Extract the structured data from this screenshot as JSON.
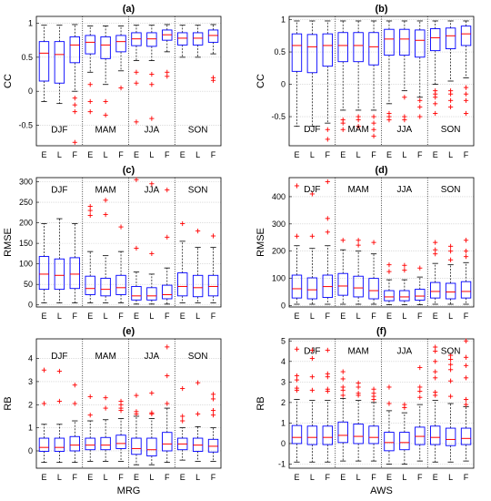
{
  "chart_data": [
    {
      "type": "box",
      "title": "(a)",
      "ylabel": "CC",
      "xlabel": "",
      "ylim": [
        -0.8,
        1.1
      ],
      "yticks": [
        -0.5,
        0,
        0.5,
        1
      ],
      "season_label_y": -0.55,
      "seasons": [
        "DJF",
        "MAM",
        "JJA",
        "SON"
      ],
      "categories": [
        "E",
        "L",
        "F"
      ],
      "boxes": [
        {
          "q1": 0.15,
          "med": 0.56,
          "q3": 0.73,
          "lo": -0.15,
          "hi": 0.97,
          "out": []
        },
        {
          "q1": 0.12,
          "med": 0.54,
          "q3": 0.73,
          "lo": -0.18,
          "hi": 0.97,
          "out": []
        },
        {
          "q1": 0.42,
          "med": 0.68,
          "q3": 0.8,
          "lo": 0.0,
          "hi": 0.98,
          "out": [
            -0.1,
            -0.2,
            -0.3,
            -0.75
          ]
        },
        {
          "q1": 0.55,
          "med": 0.72,
          "q3": 0.82,
          "lo": 0.28,
          "hi": 0.96,
          "out": [
            0.1,
            -0.15,
            -0.3
          ]
        },
        {
          "q1": 0.48,
          "med": 0.68,
          "q3": 0.8,
          "lo": 0.1,
          "hi": 0.96,
          "out": [
            -0.15,
            -0.35
          ]
        },
        {
          "q1": 0.58,
          "med": 0.73,
          "q3": 0.82,
          "lo": 0.3,
          "hi": 0.96,
          "out": [
            0.05
          ]
        },
        {
          "q1": 0.67,
          "med": 0.77,
          "q3": 0.86,
          "lo": 0.45,
          "hi": 0.97,
          "out": [
            0.28,
            0.12,
            -0.45
          ]
        },
        {
          "q1": 0.66,
          "med": 0.77,
          "q3": 0.86,
          "lo": 0.45,
          "hi": 0.97,
          "out": [
            0.25,
            0.1,
            -0.4
          ]
        },
        {
          "q1": 0.75,
          "med": 0.83,
          "q3": 0.9,
          "lo": 0.58,
          "hi": 0.98,
          "out": [
            0.28,
            0.22
          ]
        },
        {
          "q1": 0.68,
          "med": 0.78,
          "q3": 0.86,
          "lo": 0.5,
          "hi": 0.97,
          "out": []
        },
        {
          "q1": 0.68,
          "med": 0.78,
          "q3": 0.86,
          "lo": 0.5,
          "hi": 0.97,
          "out": []
        },
        {
          "q1": 0.72,
          "med": 0.82,
          "q3": 0.9,
          "lo": 0.55,
          "hi": 0.98,
          "out": [
            0.2,
            0.16
          ]
        }
      ]
    },
    {
      "type": "box",
      "title": "(b)",
      "ylabel": "CC",
      "xlabel": "",
      "ylim": [
        -0.95,
        1.05
      ],
      "yticks": [
        -0.5,
        0,
        0.5,
        1
      ],
      "season_label_y": -0.68,
      "seasons": [
        "DJF",
        "MAM",
        "JJA",
        "SON"
      ],
      "categories": [
        "E",
        "L",
        "F"
      ],
      "boxes": [
        {
          "q1": 0.2,
          "med": 0.6,
          "q3": 0.78,
          "lo": -0.65,
          "hi": 0.98,
          "out": []
        },
        {
          "q1": 0.18,
          "med": 0.58,
          "q3": 0.77,
          "lo": -0.65,
          "hi": 0.98,
          "out": []
        },
        {
          "q1": 0.28,
          "med": 0.6,
          "q3": 0.78,
          "lo": -0.6,
          "hi": 0.98,
          "out": [
            -0.7,
            -0.85
          ]
        },
        {
          "q1": 0.35,
          "med": 0.6,
          "q3": 0.8,
          "lo": -0.4,
          "hi": 0.98,
          "out": [
            -0.55,
            -0.6,
            -0.7
          ]
        },
        {
          "q1": 0.35,
          "med": 0.6,
          "q3": 0.8,
          "lo": -0.4,
          "hi": 0.98,
          "out": [
            -0.5,
            -0.55,
            -0.65
          ]
        },
        {
          "q1": 0.3,
          "med": 0.58,
          "q3": 0.8,
          "lo": -0.4,
          "hi": 0.98,
          "out": [
            -0.5,
            -0.6,
            -0.7,
            -0.8
          ]
        },
        {
          "q1": 0.45,
          "med": 0.7,
          "q3": 0.85,
          "lo": -0.3,
          "hi": 0.98,
          "out": [
            -0.45,
            -0.5,
            -0.55
          ]
        },
        {
          "q1": 0.45,
          "med": 0.7,
          "q3": 0.85,
          "lo": -0.1,
          "hi": 0.98,
          "out": [
            -0.2,
            -0.5,
            -0.55
          ]
        },
        {
          "q1": 0.42,
          "med": 0.68,
          "q3": 0.84,
          "lo": -0.2,
          "hi": 0.98,
          "out": [
            -0.25,
            -0.35,
            -0.5
          ]
        },
        {
          "q1": 0.52,
          "med": 0.72,
          "q3": 0.86,
          "lo": 0.0,
          "hi": 0.98,
          "out": [
            -0.1,
            -0.15,
            -0.2,
            -0.3,
            -0.45
          ]
        },
        {
          "q1": 0.55,
          "med": 0.75,
          "q3": 0.87,
          "lo": 0.05,
          "hi": 0.98,
          "out": [
            -0.1,
            -0.15,
            -0.25,
            -0.35
          ]
        },
        {
          "q1": 0.6,
          "med": 0.78,
          "q3": 0.9,
          "lo": 0.1,
          "hi": 0.98,
          "out": [
            -0.05,
            -0.15,
            -0.25,
            -0.45
          ]
        }
      ]
    },
    {
      "type": "box",
      "title": "(c)",
      "ylabel": "RMSE",
      "xlabel": "",
      "ylim": [
        -5,
        310
      ],
      "yticks": [
        0,
        50,
        100,
        150,
        200,
        250,
        300
      ],
      "season_label_y": 282,
      "seasons": [
        "DJF",
        "MAM",
        "JJA",
        "SON"
      ],
      "categories": [
        "E",
        "L",
        "F"
      ],
      "boxes": [
        {
          "q1": 38,
          "med": 75,
          "q3": 118,
          "lo": 5,
          "hi": 198,
          "out": []
        },
        {
          "q1": 38,
          "med": 72,
          "q3": 112,
          "lo": 5,
          "hi": 210,
          "out": []
        },
        {
          "q1": 40,
          "med": 75,
          "q3": 115,
          "lo": 5,
          "hi": 198,
          "out": []
        },
        {
          "q1": 25,
          "med": 40,
          "q3": 70,
          "lo": 5,
          "hi": 130,
          "out": [
            240,
            230,
            218
          ]
        },
        {
          "q1": 22,
          "med": 38,
          "q3": 65,
          "lo": 5,
          "hi": 120,
          "out": [
            255,
            220
          ]
        },
        {
          "q1": 25,
          "med": 42,
          "q3": 72,
          "lo": 5,
          "hi": 130,
          "out": [
            190
          ]
        },
        {
          "q1": 12,
          "med": 22,
          "q3": 45,
          "lo": 2,
          "hi": 80,
          "out": [
            305,
            138
          ]
        },
        {
          "q1": 12,
          "med": 22,
          "q3": 42,
          "lo": 2,
          "hi": 75,
          "out": [
            295,
            125
          ]
        },
        {
          "q1": 15,
          "med": 25,
          "q3": 48,
          "lo": 2,
          "hi": 90,
          "out": [
            280,
            165
          ]
        },
        {
          "q1": 22,
          "med": 45,
          "q3": 78,
          "lo": 5,
          "hi": 155,
          "out": [
            198
          ]
        },
        {
          "q1": 20,
          "med": 42,
          "q3": 72,
          "lo": 5,
          "hi": 140,
          "out": [
            180
          ]
        },
        {
          "q1": 22,
          "med": 45,
          "q3": 72,
          "lo": 5,
          "hi": 140,
          "out": [
            168
          ]
        }
      ]
    },
    {
      "type": "box",
      "title": "(d)",
      "ylabel": "RMSE",
      "xlabel": "",
      "ylim": [
        -5,
        470
      ],
      "yticks": [
        0,
        100,
        200,
        300,
        400
      ],
      "season_label_y": 430,
      "seasons": [
        "DJF",
        "MAM",
        "JJA",
        "SON"
      ],
      "categories": [
        "E",
        "L",
        "F"
      ],
      "boxes": [
        {
          "q1": 28,
          "med": 62,
          "q3": 112,
          "lo": 5,
          "hi": 220,
          "out": [
            440,
            255
          ]
        },
        {
          "q1": 25,
          "med": 58,
          "q3": 102,
          "lo": 5,
          "hi": 210,
          "out": [
            410,
            255
          ]
        },
        {
          "q1": 30,
          "med": 70,
          "q3": 112,
          "lo": 5,
          "hi": 220,
          "out": [
            455,
            320,
            270
          ]
        },
        {
          "q1": 38,
          "med": 72,
          "q3": 118,
          "lo": 5,
          "hi": 205,
          "out": [
            240
          ]
        },
        {
          "q1": 32,
          "med": 65,
          "q3": 108,
          "lo": 5,
          "hi": 200,
          "out": [
            240,
            222
          ]
        },
        {
          "q1": 25,
          "med": 55,
          "q3": 100,
          "lo": 5,
          "hi": 190,
          "out": [
            232
          ]
        },
        {
          "q1": 18,
          "med": 32,
          "q3": 55,
          "lo": 3,
          "hi": 95,
          "out": [
            150,
            125
          ]
        },
        {
          "q1": 18,
          "med": 32,
          "q3": 55,
          "lo": 3,
          "hi": 95,
          "out": [
            148,
            130
          ]
        },
        {
          "q1": 20,
          "med": 35,
          "q3": 60,
          "lo": 3,
          "hi": 105,
          "out": [
            138
          ]
        },
        {
          "q1": 28,
          "med": 52,
          "q3": 85,
          "lo": 5,
          "hi": 155,
          "out": [
            232,
            205,
            190
          ]
        },
        {
          "q1": 25,
          "med": 50,
          "q3": 82,
          "lo": 5,
          "hi": 150,
          "out": [
            218,
            200,
            168
          ]
        },
        {
          "q1": 28,
          "med": 52,
          "q3": 88,
          "lo": 5,
          "hi": 158,
          "out": [
            240,
            200,
            180
          ]
        }
      ]
    },
    {
      "type": "box",
      "title": "(e)",
      "ylabel": "RB",
      "xlabel": "MRG",
      "ylim": [
        -0.75,
        4.85
      ],
      "yticks": [
        0,
        1,
        2,
        3,
        4
      ],
      "season_label_y": 4.15,
      "seasons": [
        "DJF",
        "MAM",
        "JJA",
        "SON"
      ],
      "categories": [
        "E",
        "L",
        "F"
      ],
      "boxes": [
        {
          "q1": -0.02,
          "med": 0.15,
          "q3": 0.55,
          "lo": -0.5,
          "hi": 1.15,
          "out": [
            3.5,
            2.05
          ]
        },
        {
          "q1": -0.02,
          "med": 0.15,
          "q3": 0.55,
          "lo": -0.5,
          "hi": 1.15,
          "out": [
            3.45,
            2.15
          ]
        },
        {
          "q1": 0.0,
          "med": 0.25,
          "q3": 0.62,
          "lo": -0.5,
          "hi": 1.3,
          "out": [
            2.85,
            2.05
          ]
        },
        {
          "q1": 0.05,
          "med": 0.25,
          "q3": 0.55,
          "lo": -0.45,
          "hi": 1.3,
          "out": [
            2.35,
            1.55
          ]
        },
        {
          "q1": 0.05,
          "med": 0.25,
          "q3": 0.58,
          "lo": -0.45,
          "hi": 1.35,
          "out": [
            2.3,
            1.85
          ]
        },
        {
          "q1": 0.1,
          "med": 0.32,
          "q3": 0.68,
          "lo": -0.45,
          "hi": 1.4,
          "out": [
            2.15,
            2.0,
            1.85,
            1.75
          ]
        },
        {
          "q1": -0.15,
          "med": 0.1,
          "q3": 0.55,
          "lo": -0.6,
          "hi": 1.5,
          "out": [
            2.4,
            1.7,
            1.6
          ]
        },
        {
          "q1": -0.22,
          "med": 0.05,
          "q3": 0.55,
          "lo": -0.6,
          "hi": 1.4,
          "out": [
            2.5,
            1.65,
            1.6
          ]
        },
        {
          "q1": 0.0,
          "med": 0.3,
          "q3": 0.8,
          "lo": -0.5,
          "hi": 1.85,
          "out": [
            4.5,
            3.25,
            2.05
          ]
        },
        {
          "q1": 0.05,
          "med": 0.3,
          "q3": 0.55,
          "lo": -0.4,
          "hi": 1.0,
          "out": [
            2.7,
            1.5,
            1.3
          ]
        },
        {
          "q1": -0.02,
          "med": 0.25,
          "q3": 0.55,
          "lo": -0.45,
          "hi": 1.05,
          "out": [
            2.95,
            1.6
          ]
        },
        {
          "q1": -0.05,
          "med": 0.2,
          "q3": 0.5,
          "lo": -0.45,
          "hi": 1.0,
          "out": [
            2.45,
            2.25,
            1.75,
            1.55
          ]
        }
      ]
    },
    {
      "type": "box",
      "title": "(f)",
      "ylabel": "RB",
      "xlabel": "AWS",
      "ylim": [
        -1.2,
        5.1
      ],
      "yticks": [
        -1,
        0,
        1,
        2,
        3,
        4,
        5
      ],
      "season_label_y": 4.55,
      "seasons": [
        "DJF",
        "MAM",
        "JJA",
        "SON"
      ],
      "categories": [
        "E",
        "L",
        "F"
      ],
      "boxes": [
        {
          "q1": 0.0,
          "med": 0.3,
          "q3": 0.88,
          "lo": -0.9,
          "hi": 2.15,
          "out": [
            4.6,
            3.3,
            3.1,
            2.7,
            2.6
          ]
        },
        {
          "q1": -0.05,
          "med": 0.3,
          "q3": 0.85,
          "lo": -0.9,
          "hi": 2.1,
          "out": [
            4.55,
            4.15,
            3.25,
            2.6
          ]
        },
        {
          "q1": -0.05,
          "med": 0.3,
          "q3": 0.85,
          "lo": -0.9,
          "hi": 2.1,
          "out": [
            4.55,
            3.4,
            3.25,
            2.65,
            2.55
          ]
        },
        {
          "q1": 0.05,
          "med": 0.4,
          "q3": 1.05,
          "lo": -0.85,
          "hi": 2.2,
          "out": [
            3.5,
            3.15,
            2.75,
            2.6,
            2.35
          ]
        },
        {
          "q1": 0.0,
          "med": 0.35,
          "q3": 0.95,
          "lo": -0.85,
          "hi": 2.1,
          "out": [
            2.95,
            2.75,
            2.45,
            2.35
          ]
        },
        {
          "q1": 0.0,
          "med": 0.3,
          "q3": 0.85,
          "lo": -0.85,
          "hi": 2.0,
          "out": [
            2.65,
            2.45,
            2.3,
            2.15
          ]
        },
        {
          "q1": -0.35,
          "med": 0.05,
          "q3": 0.55,
          "lo": -1.0,
          "hi": 1.6,
          "out": [
            2.75,
            1.95
          ]
        },
        {
          "q1": -0.3,
          "med": 0.05,
          "q3": 0.55,
          "lo": -1.0,
          "hi": 1.5,
          "out": [
            1.9,
            1.75
          ]
        },
        {
          "q1": -0.05,
          "med": 0.35,
          "q3": 0.8,
          "lo": -0.85,
          "hi": 1.9,
          "out": [
            3.7,
            2.75,
            2.55,
            2.25
          ]
        },
        {
          "q1": -0.05,
          "med": 0.3,
          "q3": 0.85,
          "lo": -0.9,
          "hi": 2.1,
          "out": [
            4.7,
            4.5,
            4.0,
            3.5,
            3.2,
            2.5,
            2.35
          ]
        },
        {
          "q1": -0.1,
          "med": 0.2,
          "q3": 0.75,
          "lo": -0.9,
          "hi": 1.95,
          "out": [
            4.3,
            4.1,
            3.85,
            3.6,
            3.05,
            2.3
          ]
        },
        {
          "q1": -0.05,
          "med": 0.25,
          "q3": 0.75,
          "lo": -0.85,
          "hi": 1.8,
          "out": [
            5.0,
            4.2,
            3.8,
            3.2,
            2.15,
            1.9
          ]
        }
      ]
    }
  ],
  "colors": {
    "box": "#0000ff",
    "median": "#ff0000",
    "whisker": "#000000",
    "outlier": "#ff0000",
    "grid": "#c8c8c8",
    "separator": "#000000"
  }
}
